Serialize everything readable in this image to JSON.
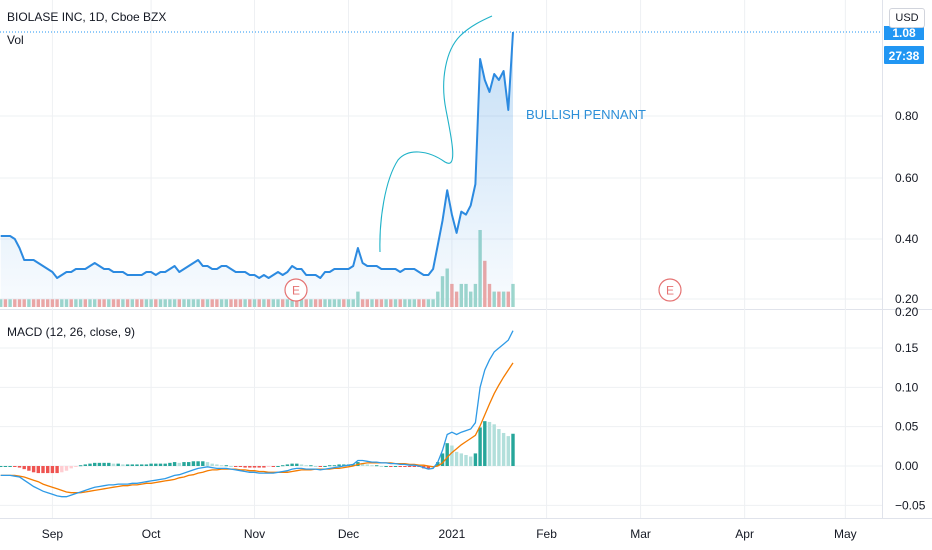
{
  "header": {
    "symbol_line": "BIOLASE INC, 1D, Cboe BZX",
    "vol_label": "Vol",
    "currency_button": "USD"
  },
  "price_badges": {
    "price": "1.08",
    "countdown": "27:38"
  },
  "annotation": {
    "text": "BULLISH PENNANT",
    "color": "#2c8fd8"
  },
  "earnings_markers": [
    "E",
    "E"
  ],
  "macd_legend": "MACD (12, 26, close, 9)",
  "colors": {
    "price_line": "#2c8ae0",
    "macd_line": "#2e9ae6",
    "signal_line": "#f57c00",
    "vol_up": "#9fd7cc",
    "vol_down": "#f0a7a4",
    "hist_up_strong": "#26a69a",
    "hist_up_weak": "#b2dfdb",
    "hist_down_strong": "#ef5350",
    "hist_down_weak": "#ffcdd2",
    "drawing": "#20b2c8",
    "earnings": "#e57373",
    "badge": "#2196f3"
  },
  "chart_data": [
    {
      "type": "line",
      "title": "BIOLASE INC, 1D, Cboe BZX",
      "price_ticks": [
        0.2,
        0.4,
        0.6,
        0.8
      ],
      "price_tick_labels": [
        "0.20",
        "0.40",
        "0.60",
        "0.80"
      ],
      "ylim": [
        0.2,
        1.08
      ],
      "x_tick_labels": [
        "Sep",
        "Oct",
        "Nov",
        "Dec",
        "2021",
        "Feb",
        "Mar",
        "Apr",
        "May"
      ],
      "series": [
        {
          "name": "Price",
          "x": [
            "2020-08-17",
            "2020-08-18",
            "2020-08-19",
            "2020-08-20",
            "2020-08-21",
            "2020-08-24",
            "2020-08-25",
            "2020-08-26",
            "2020-08-27",
            "2020-08-28",
            "2020-08-31",
            "2020-09-01",
            "2020-09-02",
            "2020-09-03",
            "2020-09-04",
            "2020-09-08",
            "2020-09-09",
            "2020-09-10",
            "2020-09-11",
            "2020-09-14",
            "2020-09-15",
            "2020-09-16",
            "2020-09-17",
            "2020-09-18",
            "2020-09-21",
            "2020-09-22",
            "2020-09-23",
            "2020-09-24",
            "2020-09-25",
            "2020-09-28",
            "2020-09-29",
            "2020-09-30",
            "2020-10-01",
            "2020-10-02",
            "2020-10-05",
            "2020-10-06",
            "2020-10-07",
            "2020-10-08",
            "2020-10-09",
            "2020-10-12",
            "2020-10-13",
            "2020-10-14",
            "2020-10-15",
            "2020-10-16",
            "2020-10-19",
            "2020-10-20",
            "2020-10-21",
            "2020-10-22",
            "2020-10-23",
            "2020-10-26",
            "2020-10-27",
            "2020-10-28",
            "2020-10-29",
            "2020-10-30",
            "2020-11-02",
            "2020-11-03",
            "2020-11-04",
            "2020-11-05",
            "2020-11-06",
            "2020-11-09",
            "2020-11-10",
            "2020-11-11",
            "2020-11-12",
            "2020-11-13",
            "2020-11-16",
            "2020-11-17",
            "2020-11-18",
            "2020-11-19",
            "2020-11-20",
            "2020-11-23",
            "2020-11-24",
            "2020-11-25",
            "2020-11-27",
            "2020-11-30",
            "2020-12-01",
            "2020-12-02",
            "2020-12-03",
            "2020-12-04",
            "2020-12-07",
            "2020-12-08",
            "2020-12-09",
            "2020-12-10",
            "2020-12-11",
            "2020-12-14",
            "2020-12-15",
            "2020-12-16",
            "2020-12-17",
            "2020-12-18",
            "2020-12-21",
            "2020-12-22",
            "2020-12-23",
            "2020-12-24",
            "2020-12-28",
            "2020-12-29",
            "2020-12-30",
            "2020-12-31",
            "2021-01-04",
            "2021-01-05",
            "2021-01-06",
            "2021-01-07",
            "2021-01-08",
            "2021-01-11",
            "2021-01-12",
            "2021-01-13",
            "2021-01-14",
            "2021-01-15",
            "2021-01-19",
            "2021-01-20",
            "2021-01-21",
            "2021-01-22"
          ],
          "values": [
            0.41,
            0.41,
            0.41,
            0.4,
            0.37,
            0.33,
            0.33,
            0.33,
            0.32,
            0.31,
            0.3,
            0.29,
            0.27,
            0.28,
            0.29,
            0.29,
            0.3,
            0.3,
            0.3,
            0.31,
            0.32,
            0.31,
            0.3,
            0.3,
            0.29,
            0.29,
            0.29,
            0.28,
            0.28,
            0.28,
            0.28,
            0.29,
            0.29,
            0.28,
            0.29,
            0.29,
            0.3,
            0.31,
            0.29,
            0.3,
            0.31,
            0.32,
            0.33,
            0.31,
            0.31,
            0.3,
            0.3,
            0.31,
            0.31,
            0.3,
            0.29,
            0.29,
            0.29,
            0.28,
            0.28,
            0.27,
            0.28,
            0.27,
            0.28,
            0.29,
            0.28,
            0.29,
            0.31,
            0.3,
            0.3,
            0.28,
            0.28,
            0.28,
            0.27,
            0.29,
            0.29,
            0.3,
            0.3,
            0.3,
            0.3,
            0.31,
            0.37,
            0.32,
            0.31,
            0.31,
            0.31,
            0.3,
            0.3,
            0.3,
            0.3,
            0.29,
            0.3,
            0.3,
            0.3,
            0.29,
            0.28,
            0.28,
            0.3,
            0.38,
            0.46,
            0.56,
            0.48,
            0.42,
            0.49,
            0.48,
            0.51,
            0.58,
            0.99,
            0.92,
            0.88,
            0.94,
            0.92,
            0.95,
            0.82,
            1.08
          ]
        }
      ]
    },
    {
      "type": "bar",
      "title": "Vol",
      "series": [
        {
          "name": "Vol",
          "values": [
            1,
            1,
            1,
            1,
            1,
            1,
            1,
            1,
            1,
            1,
            1,
            1,
            1,
            1,
            1,
            1,
            1,
            1,
            1,
            1,
            1,
            1,
            1,
            1,
            1,
            1,
            1,
            1,
            1,
            1,
            1,
            1,
            1,
            1,
            1,
            1,
            1,
            1,
            1,
            1,
            1,
            1,
            1,
            1,
            1,
            1,
            1,
            1,
            1,
            1,
            1,
            1,
            1,
            1,
            1,
            1,
            1,
            1,
            1,
            1,
            1,
            1,
            1,
            1,
            1,
            1,
            1,
            1,
            1,
            1,
            1,
            1,
            1,
            1,
            1,
            1,
            2,
            1,
            1,
            1,
            1,
            1,
            1,
            1,
            1,
            1,
            1,
            1,
            1,
            1,
            1,
            1,
            1,
            2,
            4,
            5,
            3,
            2,
            3,
            3,
            2,
            3,
            10,
            6,
            3,
            2,
            2,
            2,
            2,
            3
          ],
          "up": [
            1,
            0,
            1,
            0,
            0,
            0,
            1,
            0,
            0,
            0,
            0,
            0,
            0,
            1,
            1,
            0,
            1,
            1,
            0,
            1,
            1,
            0,
            0,
            1,
            0,
            0,
            1,
            0,
            1,
            0,
            0,
            1,
            1,
            0,
            1,
            1,
            1,
            1,
            0,
            1,
            1,
            1,
            1,
            0,
            1,
            0,
            0,
            1,
            1,
            0,
            0,
            0,
            1,
            0,
            1,
            0,
            1,
            0,
            1,
            1,
            0,
            1,
            1,
            0,
            1,
            0,
            1,
            0,
            0,
            1,
            1,
            1,
            1,
            0,
            1,
            1,
            1,
            0,
            0,
            1,
            0,
            0,
            1,
            0,
            1,
            0,
            1,
            1,
            1,
            0,
            0,
            1,
            1,
            1,
            1,
            1,
            0,
            0,
            1,
            1,
            1,
            1,
            1,
            0,
            0,
            1,
            0,
            1,
            0,
            1
          ]
        }
      ]
    },
    {
      "type": "line",
      "title": "MACD (12, 26, close, 9)",
      "ylim": [
        -0.055,
        0.18
      ],
      "y_ticks": [
        -0.05,
        0.0,
        0.05,
        0.1,
        0.15
      ],
      "y_tick_labels": [
        "−0.05",
        "0.00",
        "0.05",
        "0.10",
        "0.15"
      ],
      "top_label": "0.20",
      "series": [
        {
          "name": "MACD",
          "values": [
            -0.012,
            -0.012,
            -0.012,
            -0.013,
            -0.014,
            -0.018,
            -0.022,
            -0.026,
            -0.029,
            -0.032,
            -0.034,
            -0.036,
            -0.038,
            -0.039,
            -0.039,
            -0.037,
            -0.035,
            -0.033,
            -0.031,
            -0.029,
            -0.027,
            -0.026,
            -0.025,
            -0.024,
            -0.024,
            -0.023,
            -0.023,
            -0.023,
            -0.022,
            -0.022,
            -0.021,
            -0.02,
            -0.019,
            -0.018,
            -0.017,
            -0.016,
            -0.014,
            -0.012,
            -0.011,
            -0.009,
            -0.007,
            -0.005,
            -0.003,
            -0.002,
            -0.001,
            -0.002,
            -0.003,
            -0.003,
            -0.003,
            -0.004,
            -0.005,
            -0.006,
            -0.007,
            -0.008,
            -0.008,
            -0.009,
            -0.009,
            -0.009,
            -0.009,
            -0.008,
            -0.007,
            -0.006,
            -0.004,
            -0.003,
            -0.003,
            -0.004,
            -0.004,
            -0.004,
            -0.005,
            -0.004,
            -0.003,
            -0.002,
            -0.001,
            0.0,
            0.001,
            0.002,
            0.007,
            0.007,
            0.006,
            0.005,
            0.005,
            0.004,
            0.004,
            0.003,
            0.003,
            0.002,
            0.002,
            0.001,
            0.001,
            0.0,
            -0.002,
            -0.004,
            -0.003,
            0.005,
            0.02,
            0.04,
            0.043,
            0.04,
            0.043,
            0.045,
            0.047,
            0.055,
            0.1,
            0.122,
            0.135,
            0.145,
            0.15,
            0.155,
            0.16,
            0.172
          ]
        },
        {
          "name": "Signal",
          "values": [
            -0.012,
            -0.012,
            -0.012,
            -0.012,
            -0.013,
            -0.014,
            -0.016,
            -0.018,
            -0.02,
            -0.023,
            -0.025,
            -0.027,
            -0.029,
            -0.031,
            -0.033,
            -0.034,
            -0.034,
            -0.034,
            -0.033,
            -0.032,
            -0.031,
            -0.03,
            -0.029,
            -0.028,
            -0.027,
            -0.026,
            -0.025,
            -0.025,
            -0.024,
            -0.024,
            -0.023,
            -0.022,
            -0.022,
            -0.021,
            -0.02,
            -0.019,
            -0.018,
            -0.017,
            -0.015,
            -0.014,
            -0.012,
            -0.011,
            -0.009,
            -0.008,
            -0.006,
            -0.005,
            -0.005,
            -0.004,
            -0.004,
            -0.004,
            -0.004,
            -0.005,
            -0.005,
            -0.006,
            -0.006,
            -0.007,
            -0.007,
            -0.008,
            -0.008,
            -0.008,
            -0.008,
            -0.008,
            -0.007,
            -0.006,
            -0.005,
            -0.005,
            -0.005,
            -0.004,
            -0.004,
            -0.004,
            -0.004,
            -0.003,
            -0.003,
            -0.002,
            -0.001,
            0.0,
            0.002,
            0.003,
            0.004,
            0.004,
            0.004,
            0.004,
            0.004,
            0.004,
            0.003,
            0.003,
            0.003,
            0.002,
            0.002,
            0.001,
            0.001,
            0.0,
            -0.001,
            0.0,
            0.004,
            0.011,
            0.017,
            0.022,
            0.027,
            0.031,
            0.035,
            0.039,
            0.051,
            0.065,
            0.079,
            0.092,
            0.103,
            0.113,
            0.122,
            0.131
          ]
        },
        {
          "name": "Histogram",
          "values": [
            0.0,
            0.0,
            0.0,
            -0.001,
            -0.002,
            -0.004,
            -0.006,
            -0.008,
            -0.009,
            -0.009,
            -0.009,
            -0.009,
            -0.009,
            -0.008,
            -0.006,
            -0.003,
            -0.001,
            0.001,
            0.002,
            0.003,
            0.004,
            0.004,
            0.004,
            0.004,
            0.003,
            0.003,
            0.002,
            0.002,
            0.002,
            0.002,
            0.002,
            0.002,
            0.003,
            0.003,
            0.003,
            0.003,
            0.004,
            0.005,
            0.004,
            0.005,
            0.005,
            0.006,
            0.006,
            0.006,
            0.005,
            0.003,
            0.002,
            0.001,
            0.001,
            0.0,
            -0.001,
            -0.001,
            -0.002,
            -0.002,
            -0.002,
            -0.002,
            -0.002,
            -0.001,
            -0.001,
            0.0,
            0.001,
            0.002,
            0.003,
            0.003,
            0.002,
            0.001,
            0.001,
            0.0,
            -0.001,
            0.0,
            0.001,
            0.001,
            0.002,
            0.002,
            0.002,
            0.002,
            0.005,
            0.004,
            0.002,
            0.001,
            0.001,
            0.0,
            0.0,
            -0.001,
            0.0,
            -0.001,
            -0.001,
            -0.001,
            -0.001,
            -0.001,
            -0.003,
            -0.004,
            -0.002,
            0.005,
            0.016,
            0.029,
            0.026,
            0.018,
            0.016,
            0.014,
            0.012,
            0.016,
            0.049,
            0.057,
            0.056,
            0.053,
            0.047,
            0.042,
            0.038,
            0.041
          ]
        }
      ]
    }
  ]
}
